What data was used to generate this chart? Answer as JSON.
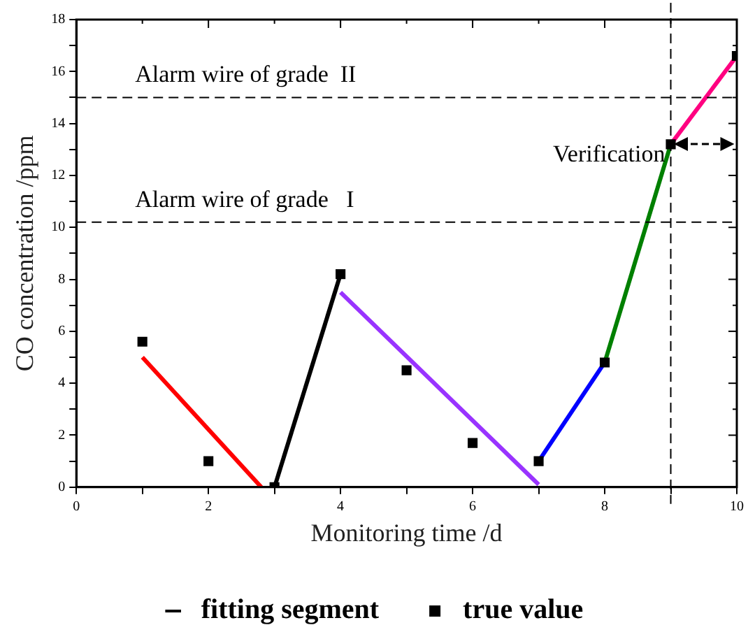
{
  "chart_data": {
    "type": "line",
    "xlabel": "Monitoring time /d",
    "ylabel": "CO concentration /ppm",
    "xlim": [
      0,
      10
    ],
    "ylim": [
      0,
      18
    ],
    "xticks": [
      0,
      {
        "value": 1,
        "label": null
      },
      2,
      {
        "value": 3,
        "label": null
      },
      4,
      {
        "value": 5,
        "label": null
      },
      6,
      {
        "value": 7,
        "label": null
      },
      8,
      {
        "value": 9,
        "label": null
      },
      10
    ],
    "yticks": [
      0,
      {
        "value": 1,
        "label": null
      },
      2,
      {
        "value": 3,
        "label": null
      },
      4,
      {
        "value": 5,
        "label": null
      },
      6,
      {
        "value": 7,
        "label": null
      },
      8,
      {
        "value": 9,
        "label": null
      },
      10,
      {
        "value": 11,
        "label": null
      },
      12,
      {
        "value": 13,
        "label": null
      },
      14,
      {
        "value": 15,
        "label": null
      },
      16,
      {
        "value": 17,
        "label": null
      },
      18
    ],
    "grid": false,
    "legend": "bottom",
    "line_style": "solid",
    "series": [
      {
        "name": "fitting segment",
        "color": "#000000",
        "x": [
          3,
          4
        ],
        "values": [
          0,
          8.2
        ]
      },
      {
        "color": "#ff0000",
        "x": [
          1,
          2.8
        ],
        "values": [
          5.0,
          0
        ]
      },
      {
        "color": "#9933ff",
        "x": [
          4,
          7
        ],
        "values": [
          7.5,
          0.1
        ]
      },
      {
        "color": "#0000ff",
        "x": [
          7,
          8
        ],
        "values": [
          1.0,
          4.8
        ]
      },
      {
        "color": "#008000",
        "x": [
          8,
          9
        ],
        "values": [
          4.8,
          13.2
        ]
      },
      {
        "color": "#ff0080",
        "x": [
          9,
          10
        ],
        "values": [
          13.2,
          16.6
        ]
      },
      {
        "type": "scatter",
        "name": "true value",
        "color": "#000000",
        "marker": "square",
        "x": [
          1,
          2,
          3,
          4,
          5,
          6,
          7,
          8,
          9,
          10
        ],
        "values": [
          5.6,
          1.0,
          0,
          8.2,
          4.5,
          1.7,
          1.0,
          4.8,
          13.2,
          16.6
        ]
      }
    ],
    "ref_lines": [
      {
        "axis": "y",
        "value": 15,
        "label": "Alarm wire of grade  II",
        "line_style": "dashed",
        "color": "#000000"
      },
      {
        "axis": "y",
        "value": 10.2,
        "label": "Alarm wire of grade   I",
        "line_style": "dashed",
        "color": "#000000"
      },
      {
        "axis": "x",
        "value": 9,
        "line_style": "dashed",
        "color": "#000000"
      }
    ],
    "annotations": [
      {
        "text": "Verification",
        "x": 9,
        "y": 13.2
      }
    ]
  }
}
